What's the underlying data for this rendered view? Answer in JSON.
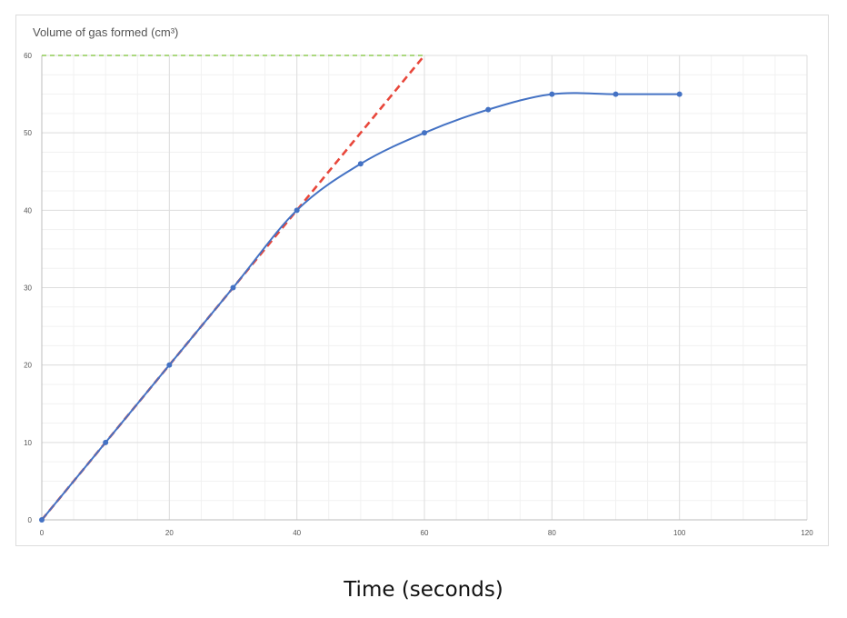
{
  "chart_data": {
    "type": "line",
    "title": "Volume of gas formed (cm³)",
    "xlabel": "Time (seconds)",
    "ylabel": "",
    "xlim": [
      0,
      120
    ],
    "ylim": [
      0,
      60
    ],
    "x_ticks": [
      0,
      20,
      40,
      60,
      80,
      100,
      120
    ],
    "y_ticks": [
      0,
      10,
      20,
      30,
      40,
      50,
      60
    ],
    "grid": true,
    "series": [
      {
        "x": [
          0,
          10,
          20,
          30,
          40,
          50,
          60,
          70,
          80,
          90,
          100
        ],
        "values": [
          0,
          10,
          20,
          30,
          40,
          46,
          50,
          53,
          55,
          55,
          55
        ],
        "color": "#4472c4",
        "style": "smooth-solid-with-markers"
      }
    ],
    "annotations": [
      {
        "type": "tangent-line",
        "x": [
          0,
          60
        ],
        "values": [
          0,
          60
        ],
        "color": "#e8473b",
        "style": "dashed"
      },
      {
        "type": "horizontal-line",
        "x": [
          0,
          60
        ],
        "values": [
          60,
          60
        ],
        "color": "#8fcc55",
        "style": "dashed"
      }
    ]
  }
}
